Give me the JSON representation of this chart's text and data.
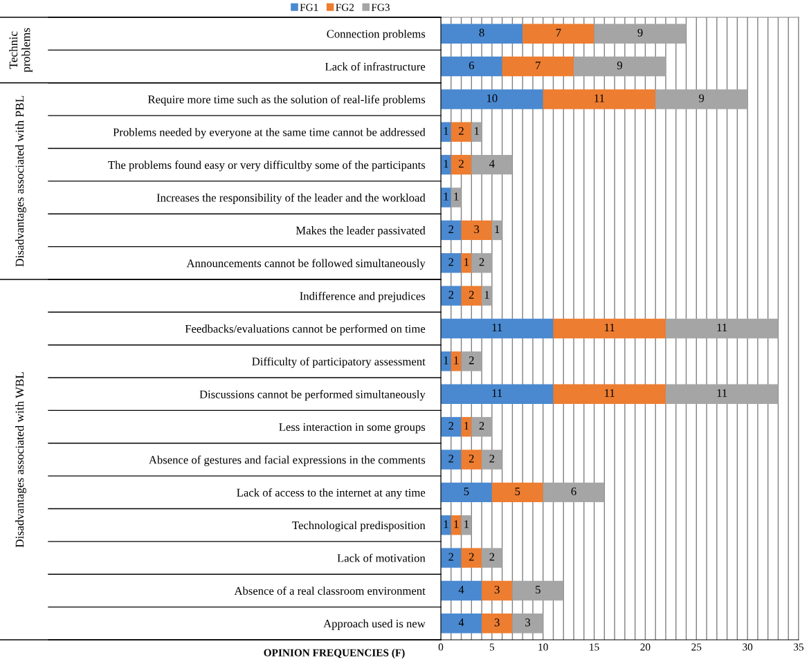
{
  "chart_data": {
    "type": "bar",
    "orientation": "horizontal",
    "stacked": true,
    "xlabel": "OPINION FREQUENCIES (F)",
    "categories": [
      "Connection problems",
      "Lack of infrastructure",
      "Require more time such as the solution of real-life problems",
      "Problems needed by everyone at the same time cannot be addressed",
      "The problems found easy or very difficultby some of the participants",
      "Increases the responsibility of the leader and the workload",
      "Makes the leader passivated",
      "Announcements cannot be followed simultaneously",
      "Indifference and prejudices",
      "Feedbacks/evaluations cannot be performed on time",
      "Difficulty of participatory assessment",
      "Discussions cannot be performed simultaneously",
      "Less interaction in some groups",
      "Absence of gestures and facial expressions in the comments",
      "Lack of access to the internet at any time",
      "Technological predisposition",
      "Lack of motivation",
      "Absence of a real classroom environment",
      "Approach used is new"
    ],
    "series": [
      {
        "name": "FG1",
        "color": "#4a89d0",
        "values": [
          8,
          6,
          10,
          1,
          1,
          1,
          2,
          2,
          2,
          11,
          1,
          11,
          2,
          2,
          5,
          1,
          2,
          4,
          4
        ]
      },
      {
        "name": "FG2",
        "color": "#ed7d31",
        "values": [
          7,
          7,
          11,
          2,
          2,
          null,
          3,
          1,
          2,
          11,
          1,
          11,
          1,
          2,
          5,
          1,
          2,
          3,
          3
        ]
      },
      {
        "name": "FG3",
        "color": "#a5a5a5",
        "values": [
          9,
          9,
          9,
          1,
          4,
          1,
          1,
          2,
          1,
          11,
          2,
          11,
          2,
          2,
          6,
          1,
          2,
          5,
          3
        ]
      }
    ],
    "data_labels": true,
    "xlim": [
      0,
      35
    ],
    "xticks": [
      0,
      {
        "value": 1,
        "label": null
      },
      {
        "value": 2,
        "label": null
      },
      {
        "value": 3,
        "label": null
      },
      {
        "value": 4,
        "label": null
      },
      5,
      {
        "value": 6,
        "label": null
      },
      {
        "value": 7,
        "label": null
      },
      {
        "value": 8,
        "label": null
      },
      {
        "value": 9,
        "label": null
      },
      10,
      {
        "value": 11,
        "label": null
      },
      {
        "value": 12,
        "label": null
      },
      {
        "value": 13,
        "label": null
      },
      {
        "value": 14,
        "label": null
      },
      15,
      {
        "value": 16,
        "label": null
      },
      {
        "value": 17,
        "label": null
      },
      {
        "value": 18,
        "label": null
      },
      {
        "value": 19,
        "label": null
      },
      20,
      {
        "value": 21,
        "label": null
      },
      {
        "value": 22,
        "label": null
      },
      {
        "value": 23,
        "label": null
      },
      {
        "value": 24,
        "label": null
      },
      25,
      {
        "value": 26,
        "label": null
      },
      {
        "value": 27,
        "label": null
      },
      {
        "value": 28,
        "label": null
      },
      {
        "value": 29,
        "label": null
      },
      30,
      {
        "value": 31,
        "label": null
      },
      {
        "value": 32,
        "label": null
      },
      {
        "value": 33,
        "label": null
      },
      {
        "value": 34,
        "label": null
      },
      35
    ],
    "grid": "x",
    "legend": "top",
    "annotations": [
      "Technic problems",
      "Disadvantages associated with PBL",
      "Disadvantages associated with WBL"
    ]
  }
}
